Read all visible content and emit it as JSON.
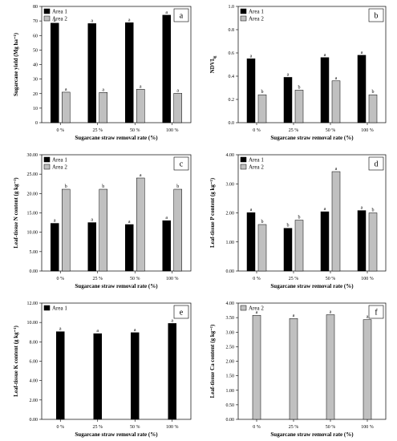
{
  "colors": {
    "area1": "#000000",
    "area2": "#c0c0c0"
  },
  "legend_labels": {
    "area1": "Area 1",
    "area2": "Area 2"
  },
  "chart_data": [
    {
      "type": "bar",
      "letter": "a",
      "categories": [
        "0 %",
        "25 %",
        "50 %",
        "100 %"
      ],
      "ylabel": "Sugarcane yield (Mg ha⁻¹)",
      "xlabel": "Sugarcane straw removal rate (%)",
      "ylim": [
        0,
        80
      ],
      "yticks": [
        "0",
        "10",
        "20",
        "30",
        "40",
        "50",
        "60",
        "70",
        "80"
      ],
      "legend": "top-left",
      "series": [
        {
          "name": "Area 1",
          "key": "area1",
          "values": [
            68.5,
            68.2,
            68.8,
            74.0
          ],
          "labels": [
            "a",
            "a",
            "a",
            "a"
          ]
        },
        {
          "name": "Area 2",
          "key": "area2",
          "values": [
            21.0,
            20.8,
            23.0,
            20.2
          ],
          "labels": [
            "a",
            "a",
            "a",
            "a"
          ]
        }
      ]
    },
    {
      "type": "bar",
      "letter": "b",
      "categories": [
        "0 %",
        "25 %",
        "50 %",
        "100 %"
      ],
      "ylabel": "NDVI",
      "ylabel_sub": "lg",
      "xlabel": "Sugarcane straw removal rate (%)",
      "ylim": [
        0,
        1
      ],
      "yticks": [
        "0.0",
        "0.2",
        "0.4",
        "0.6",
        "0.8",
        "1.0"
      ],
      "legend": "top-left",
      "series": [
        {
          "name": "Area 1",
          "key": "area1",
          "values": [
            0.55,
            0.39,
            0.56,
            0.58
          ],
          "labels": [
            "a",
            "a",
            "a",
            "a"
          ]
        },
        {
          "name": "Area 2",
          "key": "area2",
          "values": [
            0.24,
            0.28,
            0.36,
            0.24
          ],
          "labels": [
            "b",
            "b",
            "a",
            "b"
          ]
        }
      ]
    },
    {
      "type": "bar",
      "letter": "c",
      "categories": [
        "0 %",
        "25 %",
        "50 %",
        "100 %"
      ],
      "ylabel": "Leaf-tissue N content (g kg⁻¹)",
      "xlabel": "Sugarcane straw removal rate (%)",
      "ylim": [
        0,
        30
      ],
      "yticks": [
        "0.00",
        "5.00",
        "10.00",
        "15.00",
        "20.00",
        "25.00",
        "30.00"
      ],
      "legend": "top-left",
      "series": [
        {
          "name": "Area 1",
          "key": "area1",
          "values": [
            12.3,
            12.5,
            12.0,
            13.0
          ],
          "labels": [
            "a",
            "a",
            "a",
            "a"
          ]
        },
        {
          "name": "Area 2",
          "key": "area2",
          "values": [
            21.1,
            21.1,
            24.0,
            21.1
          ],
          "labels": [
            "b",
            "b",
            "a",
            "b"
          ]
        }
      ]
    },
    {
      "type": "bar",
      "letter": "d",
      "categories": [
        "0 %",
        "25 %",
        "50 %",
        "100 %"
      ],
      "ylabel": "Leaf-tissue P content (g kg⁻¹)",
      "xlabel": "Sugarcane straw removal rate (%)",
      "ylim": [
        0,
        4
      ],
      "yticks": [
        "0.00",
        "1.00",
        "2.00",
        "3.00",
        "4.00"
      ],
      "legend": "top-left",
      "series": [
        {
          "name": "Area 1",
          "key": "area1",
          "values": [
            2.01,
            1.47,
            2.04,
            2.08
          ],
          "labels": [
            "a",
            "b",
            "a",
            "a"
          ]
        },
        {
          "name": "Area 2",
          "key": "area2",
          "values": [
            1.6,
            1.75,
            3.42,
            2.0
          ],
          "labels": [
            "b",
            "b",
            "a",
            "b"
          ]
        }
      ]
    },
    {
      "type": "bar",
      "letter": "e",
      "categories": [
        "0 %",
        "25 %",
        "50 %",
        "100 %"
      ],
      "ylabel": "Leaf-tissue K content (g kg⁻¹)",
      "xlabel": "Sugarcane straw removal rate (%)",
      "ylim": [
        0,
        12
      ],
      "yticks": [
        "0.00",
        "2.00",
        "4.00",
        "6.00",
        "8.00",
        "10.00",
        "12.00"
      ],
      "legend": "top-left",
      "series": [
        {
          "name": "Area 1",
          "key": "area1",
          "values": [
            9.05,
            8.85,
            8.95,
            9.9
          ],
          "labels": [
            "a",
            "a",
            "a",
            "a"
          ]
        }
      ]
    },
    {
      "type": "bar",
      "letter": "f",
      "categories": [
        "0 %",
        "25 %",
        "50 %",
        "100 %"
      ],
      "ylabel": "Leaf-tissue Ca content (g kg⁻¹)",
      "xlabel": "Sugarcane straw removal rate (%)",
      "ylim": [
        0,
        4
      ],
      "yticks": [
        "0.00",
        "0.50",
        "1.00",
        "1.50",
        "2.00",
        "2.50",
        "3.00",
        "3.50",
        "4.00"
      ],
      "legend": "top-left",
      "series": [
        {
          "name": "Area 2",
          "key": "area2",
          "values": [
            3.58,
            3.47,
            3.6,
            3.43
          ],
          "labels": [
            "a",
            "a",
            "a",
            "a"
          ]
        }
      ]
    }
  ]
}
